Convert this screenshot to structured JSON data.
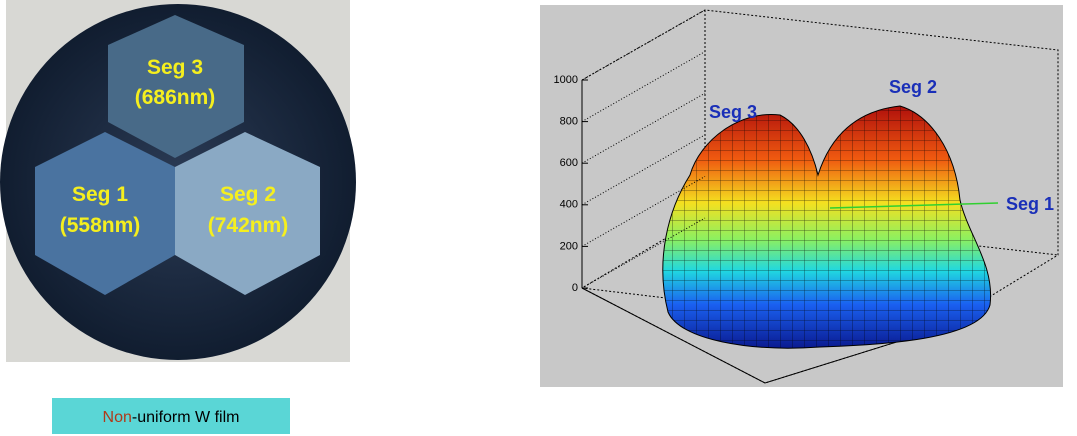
{
  "photo": {
    "segments": [
      {
        "name": "Seg 3",
        "thickness": "(686nm)"
      },
      {
        "name": "Seg 1",
        "thickness": "(558nm)"
      },
      {
        "name": "Seg 2",
        "thickness": "(742nm)"
      }
    ]
  },
  "caption": {
    "highlight": "Non",
    "rest": "-uniform W film"
  },
  "plot": {
    "zticks": [
      0,
      200,
      400,
      600,
      800,
      1000
    ],
    "zlim": [
      0,
      1000
    ],
    "labels": [
      "Seg 3",
      "Seg 2",
      "Seg 1"
    ]
  }
}
